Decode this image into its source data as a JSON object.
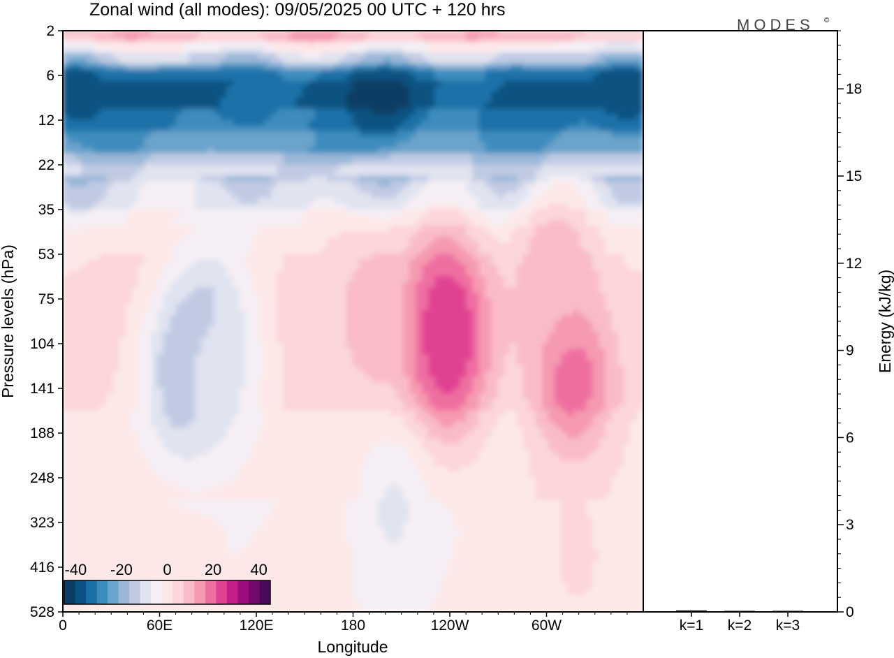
{
  "figure": {
    "title": "Zonal wind (all modes):  09/05/2025  00 UTC  + 120 hrs",
    "brand": "MODES",
    "brand_mark": "©"
  },
  "chart_data": [
    {
      "type": "heatmap",
      "title": "Zonal wind (all modes):  09/05/2025  00 UTC  + 120 hrs",
      "xlabel": "Longitude",
      "ylabel": "Pressure levels (hPa)",
      "x_ticks": [
        "0",
        "60E",
        "120E",
        "180",
        "120W",
        "60W"
      ],
      "x_tick_degrees": [
        0,
        60,
        120,
        180,
        240,
        300
      ],
      "x_range": [
        0,
        360
      ],
      "y_ticks": [
        "2",
        "6",
        "12",
        "22",
        "35",
        "53",
        "75",
        "104",
        "141",
        "188",
        "248",
        "323",
        "416",
        "528"
      ],
      "y_scale": "pressure levels, top to bottom",
      "colorbar": {
        "ticks": [
          "-40",
          "-20",
          "0",
          "20",
          "40"
        ],
        "range": [
          -45,
          45
        ],
        "step": 5,
        "colors": [
          "#0a3d62",
          "#0b5282",
          "#1a71a8",
          "#3c8cbd",
          "#6aa3cb",
          "#9ab7d8",
          "#c0cbe3",
          "#e0e3f0",
          "#f6eff5",
          "#fde8e8",
          "#fcd6d9",
          "#f9bcc6",
          "#f59ab0",
          "#ef6ea0",
          "#e04392",
          "#c41f86",
          "#9c0c7b",
          "#720a6c",
          "#4a0a5a"
        ],
        "placement": "lower-left inside plot"
      },
      "features": [
        {
          "lon": 200,
          "level": 9,
          "value": -42
        },
        {
          "lon": 10,
          "level": 8,
          "value": -40
        },
        {
          "lon": 350,
          "level": 8,
          "value": -40
        },
        {
          "lon": 115,
          "level": 8,
          "value": -35
        },
        {
          "lon": 280,
          "level": 9,
          "value": -35
        },
        {
          "lon": 90,
          "level": 100,
          "value": -17
        },
        {
          "lon": 75,
          "level": 130,
          "value": -16
        },
        {
          "lon": 235,
          "level": 100,
          "value": 27
        },
        {
          "lon": 237,
          "level": 95,
          "value": 30
        },
        {
          "lon": 316,
          "level": 130,
          "value": 25
        },
        {
          "lon": 195,
          "level": 90,
          "value": 14
        },
        {
          "lon": 305,
          "level": 60,
          "value": 14
        },
        {
          "lon": 100,
          "level": 130,
          "value": -6
        },
        {
          "lon": 205,
          "level": 300,
          "value": -6
        },
        {
          "lon": 20,
          "level": 300,
          "value": 3
        },
        {
          "lon": 320,
          "level": 400,
          "value": 6
        }
      ],
      "palette_note": "zonal wind, m/s"
    },
    {
      "type": "bar",
      "ylabel": "Energy (kJ/kg)",
      "y_ticks": [
        "0",
        "3",
        "6",
        "9",
        "12",
        "15",
        "18"
      ],
      "ylim": [
        0,
        20
      ],
      "categories": [
        "k=1",
        "k=2",
        "k=3"
      ],
      "values": [
        0.05,
        0.03,
        0.02
      ]
    }
  ]
}
